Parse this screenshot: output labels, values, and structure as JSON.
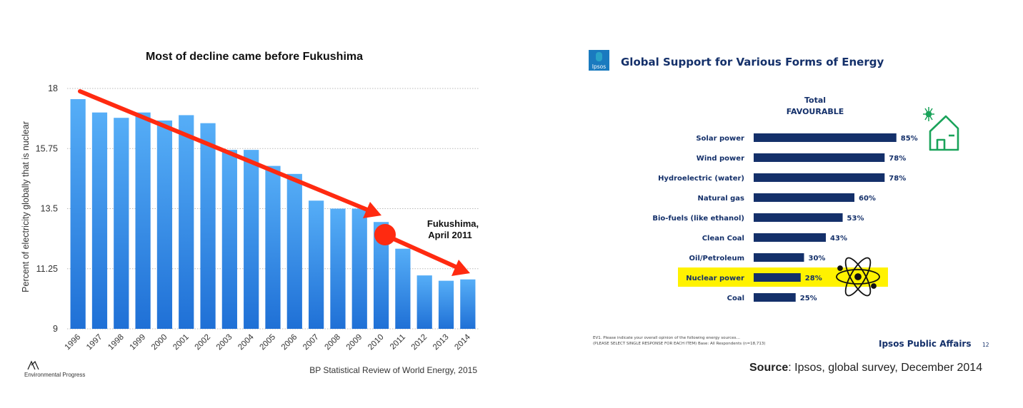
{
  "chart_data": [
    {
      "type": "bar",
      "title": "Most of decline came before Fukushima",
      "ylabel": "Percent of electricity globally that is nuclear",
      "xlabel": "",
      "ylim": [
        9,
        18
      ],
      "yticks": [
        "18",
        "15.75",
        "13.5",
        "11.25",
        "9"
      ],
      "ytick_values": [
        18,
        15.75,
        13.5,
        11.25,
        9
      ],
      "grid": true,
      "categories": [
        "1996",
        "1997",
        "1998",
        "1999",
        "2000",
        "2001",
        "2002",
        "2003",
        "2004",
        "2005",
        "2006",
        "2007",
        "2008",
        "2009",
        "2010",
        "2011",
        "2012",
        "2013",
        "2014"
      ],
      "values": [
        17.6,
        17.1,
        16.9,
        17.1,
        16.8,
        17.0,
        16.7,
        15.7,
        15.7,
        15.1,
        14.8,
        13.8,
        13.5,
        13.5,
        13.0,
        12.0,
        11.0,
        10.8,
        10.85
      ],
      "bar_color": "#2f8bea",
      "annotation": {
        "line1": "Fukushima,",
        "line2": "April 2011"
      },
      "trend_color": "#ff2a10",
      "source": "BP Statistical Review of World Energy, 2015",
      "logo_text": "Environmental Progress"
    },
    {
      "type": "bar",
      "orientation": "horizontal",
      "title": "Global Support for Various Forms of Energy",
      "header_line1": "Total",
      "header_line2": "FAVOURABLE",
      "categories": [
        "Solar power",
        "Wind power",
        "Hydroelectric (water)",
        "Natural gas",
        "Bio-fuels (like ethanol)",
        "Clean Coal",
        "Oil/Petroleum",
        "Nuclear power",
        "Coal"
      ],
      "values": [
        85,
        78,
        78,
        60,
        53,
        43,
        30,
        28,
        25
      ],
      "value_labels": [
        "85%",
        "78%",
        "78%",
        "60%",
        "53%",
        "43%",
        "30%",
        "28%",
        "25%"
      ],
      "highlight": "Nuclear power",
      "highlight_color": "#fff200",
      "bar_color": "#14306a",
      "footnote_line1": "EV1. Please indicate your overall opinion of the following energy sources…",
      "footnote_line2": "(PLEASE SELECT SINGLE RESPONSE FOR EACH ITEM)  Base: All Respondents (n=18,713)",
      "brand": "Ipsos Public Affairs",
      "page_number": "12",
      "logo_text": "Ipsos",
      "source_label": "Source",
      "source_text": ": Ipsos, global survey, December 2014"
    }
  ],
  "icons": {
    "house": "solar-house-icon",
    "atom": "atom-icon",
    "logo_left": "environmental-progress-logo",
    "logo_right": "ipsos-logo"
  }
}
